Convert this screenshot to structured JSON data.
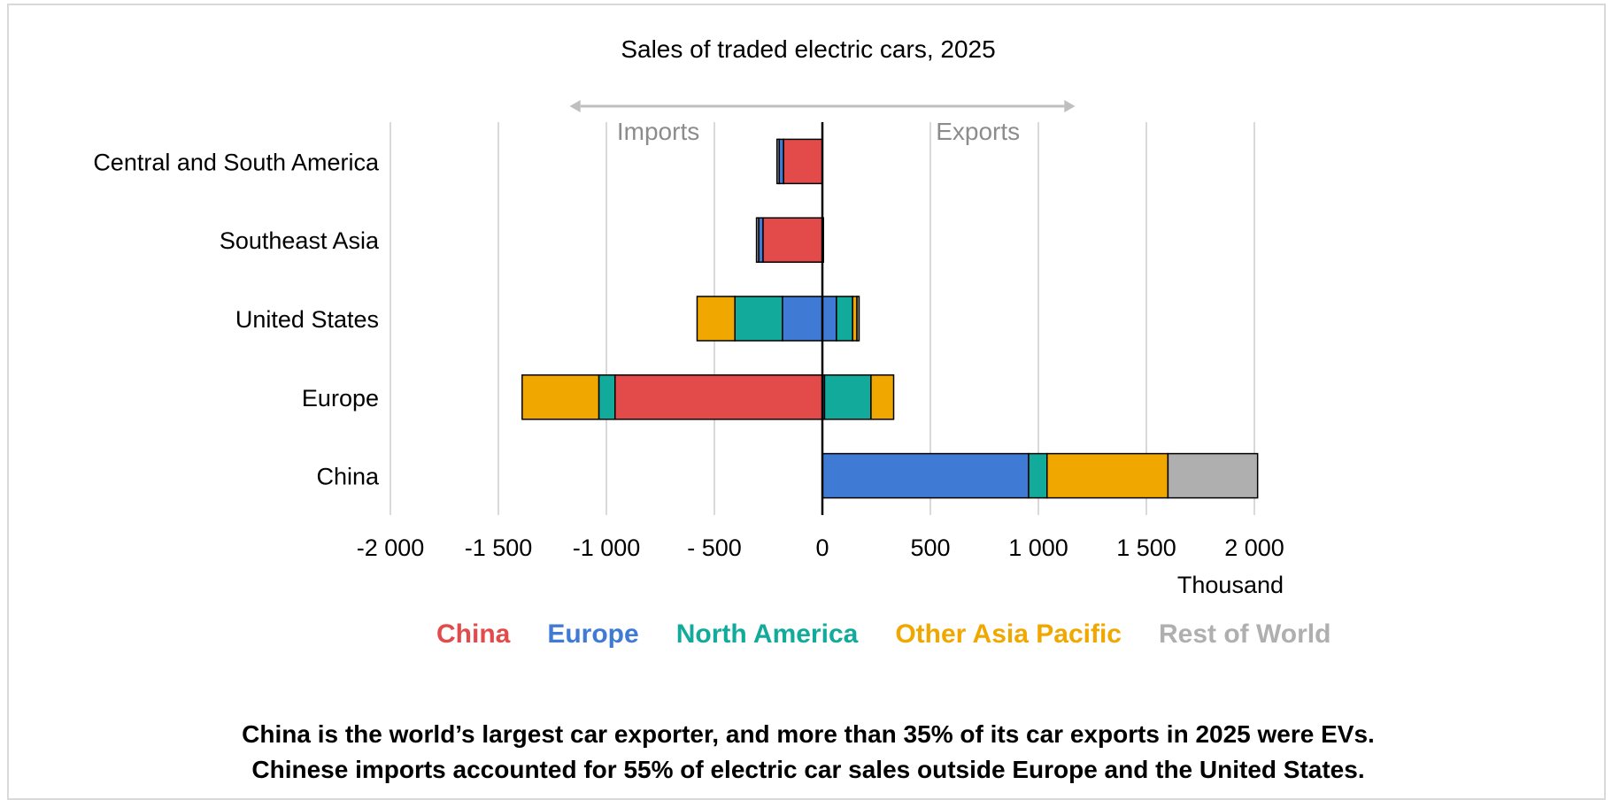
{
  "chart_data": {
    "type": "bar",
    "orientation": "horizontal",
    "stacked": true,
    "title": "Sales of traded electric cars, 2025",
    "unit_label": "Thousand",
    "annotations": {
      "left": "Imports",
      "right": "Exports"
    },
    "categories": [
      "Central and South America",
      "Southeast Asia",
      "United States",
      "Europe",
      "China"
    ],
    "xlim": [
      -2000,
      2000
    ],
    "xticks": [
      -2000,
      -1500,
      -1000,
      -500,
      0,
      500,
      1000,
      1500,
      2000
    ],
    "xtick_labels": [
      "-2 000",
      "-1 500",
      "-1 000",
      "- 500",
      "0",
      "500",
      "1 000",
      "1 500",
      "2 000"
    ],
    "grid": true,
    "legend_position": "bottom",
    "series": [
      {
        "name": "China",
        "color": "#e34a4a",
        "imports": [
          180,
          275,
          0,
          960,
          0
        ],
        "exports": [
          0,
          5,
          0,
          0,
          0
        ]
      },
      {
        "name": "Europe",
        "color": "#3f7bd4",
        "imports": [
          20,
          20,
          185,
          0,
          0
        ],
        "exports": [
          0,
          0,
          65,
          10,
          955
        ]
      },
      {
        "name": "North America",
        "color": "#12ab9b",
        "imports": [
          0,
          0,
          220,
          75,
          0
        ],
        "exports": [
          0,
          0,
          75,
          215,
          85
        ]
      },
      {
        "name": "Other Asia Pacific",
        "color": "#f0a800",
        "imports": [
          0,
          0,
          175,
          355,
          0
        ],
        "exports": [
          0,
          0,
          20,
          105,
          560
        ]
      },
      {
        "name": "Rest of World",
        "color": "#afafaf",
        "imports": [
          10,
          10,
          0,
          0,
          0
        ],
        "exports": [
          0,
          0,
          10,
          0,
          415
        ]
      }
    ]
  },
  "caption": {
    "line1": "China is the world’s largest car exporter, and more than 35% of its car exports in 2025 were EVs.",
    "line2": "Chinese imports accounted for 55% of electric car sales outside Europe and the United States."
  }
}
